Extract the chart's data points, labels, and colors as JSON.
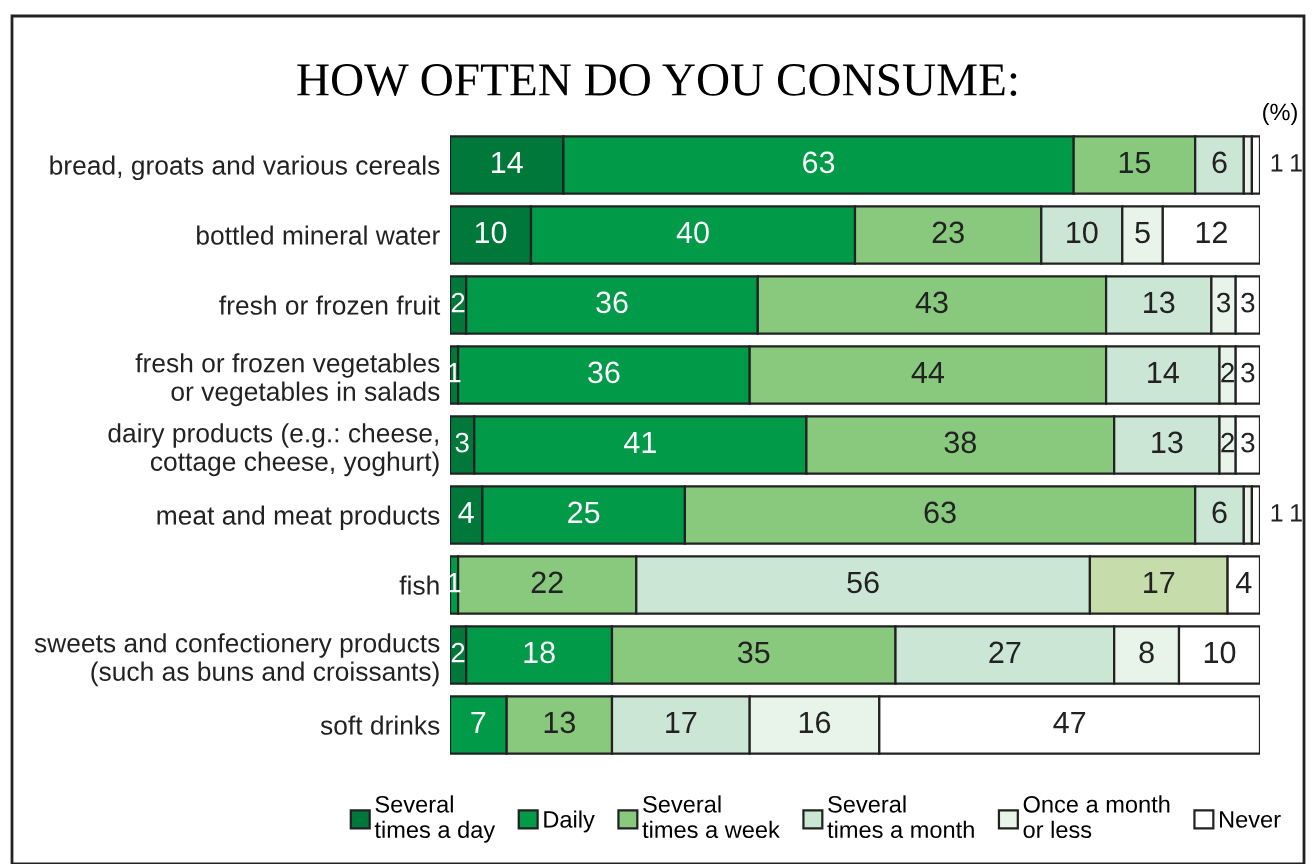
{
  "chart_data": {
    "type": "bar",
    "orientation": "horizontal",
    "stacked": true,
    "title": "HOW OFTEN DO YOU CONSUME:",
    "annotations": [
      "(%)"
    ],
    "categories": [
      "bread, groats and various cereals",
      "bottled mineral water",
      "fresh or frozen fruit",
      "fresh or frozen vegetables\nor vegetables in salads",
      "dairy products (e.g.: cheese,\ncottage cheese, yoghurt)",
      "meat and meat products",
      "fish",
      "sweets and confectionery products\n(such as buns and croissants)",
      "soft drinks"
    ],
    "series": [
      {
        "name": "Several\ntimes a day",
        "color": "#00783a",
        "values": [
          14,
          10,
          2,
          1,
          3,
          4,
          null,
          2,
          null
        ]
      },
      {
        "name": "Daily",
        "color": "#009a49",
        "values": [
          63,
          40,
          36,
          36,
          41,
          25,
          1,
          18,
          7
        ]
      },
      {
        "name": "Several\ntimes a week",
        "color": "#88c97e",
        "values": [
          15,
          23,
          43,
          44,
          38,
          63,
          22,
          35,
          13
        ]
      },
      {
        "name": "Several\ntimes a month",
        "color": "#cce6d5",
        "values": [
          6,
          10,
          13,
          14,
          13,
          6,
          56,
          27,
          17
        ]
      },
      {
        "name": "Once a month\nor less",
        "color": "#e8f4ea",
        "colors": [
          "#e8f4ea",
          "#e8f4ea",
          "#e8f4ea",
          "#e8f4ea",
          "#e8f4ea",
          "#e8f4ea",
          "#c6dcaa",
          "#e8f4ea",
          "#e8f4ea"
        ],
        "values": [
          1,
          5,
          3,
          2,
          2,
          1,
          17,
          8,
          16
        ]
      },
      {
        "name": "Never",
        "color": "#ffffff",
        "values": [
          1,
          12,
          3,
          3,
          3,
          1,
          4,
          10,
          47
        ]
      }
    ],
    "data_labels": true,
    "legend": "bottom",
    "grid": false
  }
}
